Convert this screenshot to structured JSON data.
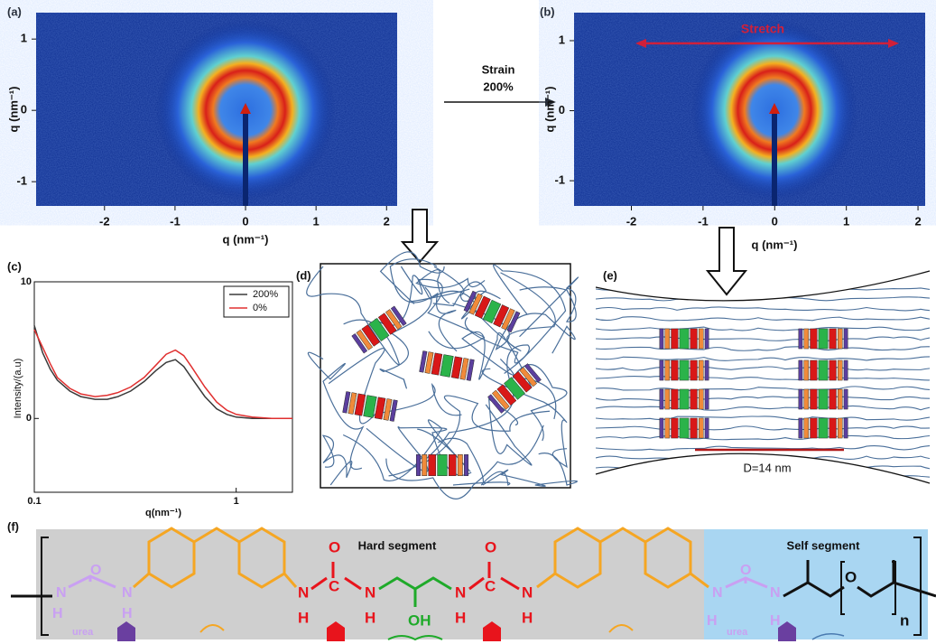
{
  "panel_a": {
    "label": "(a)",
    "xlabel": "q (nm⁻¹)",
    "ylabel": "q (nm⁻¹)",
    "xlim": [
      -2.97,
      2.15
    ],
    "ylim": [
      -1.34,
      1.37
    ],
    "xticks": [
      -2,
      -1,
      0,
      1,
      2
    ],
    "yticks": [
      1,
      0,
      -1
    ]
  },
  "strain": {
    "line1": "Strain",
    "line2": "200%"
  },
  "panel_b": {
    "label": "(b)",
    "xlabel": "q (nm⁻¹)",
    "ylabel": "q (nm⁻¹)",
    "annotation": "Stretch",
    "xlim": [
      -2.8,
      2.1
    ],
    "ylim": [
      -1.36,
      1.4
    ],
    "xticks": [
      -2,
      -1,
      0,
      1,
      2
    ],
    "yticks": [
      1,
      0,
      -1
    ]
  },
  "chart_data": {
    "type": "line",
    "label": "(c)",
    "xlabel": "q(nm⁻¹)",
    "ylabel": "Intensity/(a.u)",
    "log_x": true,
    "xlim": [
      0.1,
      1.9
    ],
    "ylim": [
      -5.4,
      10
    ],
    "xticks": [
      0.1,
      1
    ],
    "yticks": [
      0,
      10
    ],
    "legend": "top-right",
    "x": [
      0.1,
      0.11,
      0.12,
      0.13,
      0.15,
      0.17,
      0.2,
      0.23,
      0.26,
      0.3,
      0.35,
      0.4,
      0.45,
      0.5,
      0.55,
      0.6,
      0.7,
      0.8,
      0.9,
      1.0,
      1.2,
      1.5,
      1.9
    ],
    "series": [
      {
        "name": "200%",
        "color": "#3a3a3a",
        "values": [
          6.8,
          4.8,
          3.6,
          2.8,
          2.0,
          1.6,
          1.4,
          1.4,
          1.6,
          2.0,
          2.7,
          3.5,
          4.1,
          4.3,
          3.8,
          3.0,
          1.6,
          0.7,
          0.3,
          0.1,
          0.0,
          0.0,
          0.0
        ]
      },
      {
        "name": "0%",
        "color": "#e03030",
        "values": [
          6.5,
          5.2,
          4.0,
          3.0,
          2.2,
          1.8,
          1.6,
          1.7,
          1.9,
          2.3,
          3.0,
          3.9,
          4.7,
          5.0,
          4.6,
          3.8,
          2.3,
          1.2,
          0.6,
          0.3,
          0.1,
          0.0,
          0.0
        ]
      }
    ]
  },
  "panel_d": {
    "label": "(d)"
  },
  "panel_e": {
    "label": "(e)",
    "annotation": "D=14 nm"
  },
  "panel_f": {
    "label": "(f)",
    "hard": "Hard segment",
    "soft": "Self segment",
    "urea": [
      "urea",
      "urea"
    ],
    "n": "n",
    "atoms": [
      "O",
      "N",
      "H",
      "N",
      "H",
      "N",
      "H",
      "O",
      "C",
      "N",
      "H",
      "OH",
      "N",
      "H",
      "O",
      "C",
      "N",
      "H",
      "N",
      "H",
      "O",
      "N",
      "H",
      "O"
    ]
  }
}
